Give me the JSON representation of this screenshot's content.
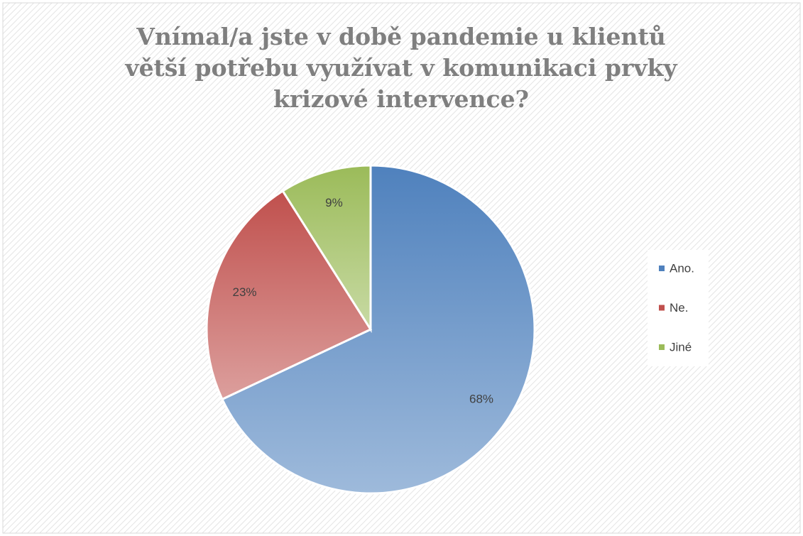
{
  "chart_data": {
    "type": "pie",
    "title": "Vnímal/a jste v době pandemie u klientů větší potřebu využívat v komunikaci prvky krizové intervence?",
    "categories": [
      "Ano.",
      "Ne.",
      "Jiné"
    ],
    "values": [
      68,
      23,
      9
    ],
    "value_labels": [
      "68%",
      "23%",
      "9%"
    ],
    "colors": [
      "#4f81bd",
      "#c0504d",
      "#9bbb59"
    ],
    "legend": "right"
  }
}
